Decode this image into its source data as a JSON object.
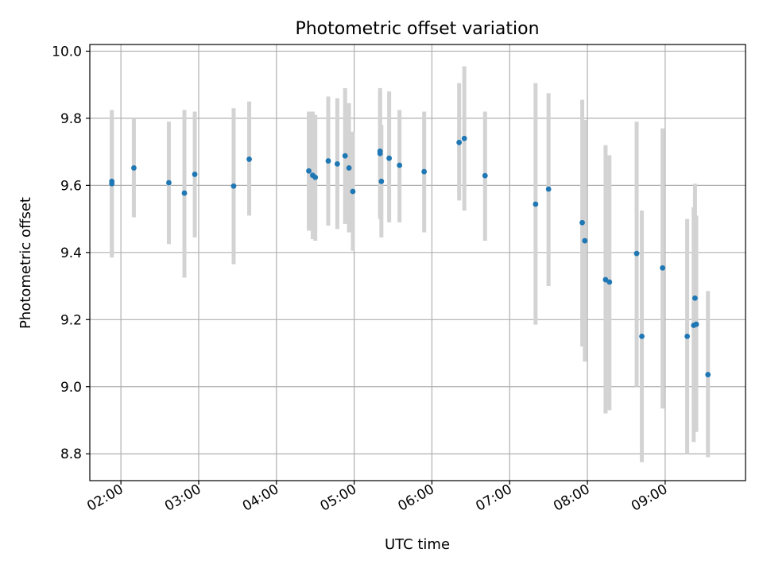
{
  "chart_data": {
    "type": "scatter",
    "title": "Photometric offset variation",
    "xlabel": "UTC time",
    "ylabel": "Photometric offset",
    "x_type": "time",
    "xlim": [
      "01:36",
      "10:02"
    ],
    "ylim": [
      8.72,
      10.02
    ],
    "xticks": [
      "02:00",
      "03:00",
      "04:00",
      "05:00",
      "06:00",
      "07:00",
      "08:00",
      "09:00"
    ],
    "yticks": [
      8.8,
      9.0,
      9.2,
      9.4,
      9.6,
      9.8,
      10.0
    ],
    "ytick_labels": [
      "8.8",
      "9.0",
      "9.2",
      "9.4",
      "9.6",
      "9.8",
      "10.0"
    ],
    "grid": true,
    "legend": "none",
    "point_color": "#1f77b4",
    "errorbar_color": "#d3d3d3",
    "series": [
      {
        "points": [
          {
            "x": "01:53",
            "y": 9.605,
            "ylow": 9.385,
            "yhigh": 9.825
          },
          {
            "x": "01:53",
            "y": 9.612,
            "ylow": 9.4,
            "yhigh": 9.8
          },
          {
            "x": "02:10",
            "y": 9.652,
            "ylow": 9.505,
            "yhigh": 9.8
          },
          {
            "x": "02:37",
            "y": 9.608,
            "ylow": 9.425,
            "yhigh": 9.79
          },
          {
            "x": "02:49",
            "y": 9.577,
            "ylow": 9.325,
            "yhigh": 9.825
          },
          {
            "x": "02:57",
            "y": 9.633,
            "ylow": 9.445,
            "yhigh": 9.82
          },
          {
            "x": "03:27",
            "y": 9.598,
            "ylow": 9.365,
            "yhigh": 9.83
          },
          {
            "x": "03:39",
            "y": 9.678,
            "ylow": 9.51,
            "yhigh": 9.85
          },
          {
            "x": "04:25",
            "y": 9.643,
            "ylow": 9.465,
            "yhigh": 9.82
          },
          {
            "x": "04:28",
            "y": 9.63,
            "ylow": 9.44,
            "yhigh": 9.82
          },
          {
            "x": "04:30",
            "y": 9.624,
            "ylow": 9.435,
            "yhigh": 9.81
          },
          {
            "x": "04:40",
            "y": 9.673,
            "ylow": 9.48,
            "yhigh": 9.865
          },
          {
            "x": "04:47",
            "y": 9.664,
            "ylow": 9.47,
            "yhigh": 9.86
          },
          {
            "x": "04:53",
            "y": 9.688,
            "ylow": 9.485,
            "yhigh": 9.89
          },
          {
            "x": "04:56",
            "y": 9.652,
            "ylow": 9.46,
            "yhigh": 9.845
          },
          {
            "x": "04:59",
            "y": 9.582,
            "ylow": 9.405,
            "yhigh": 9.76
          },
          {
            "x": "05:20",
            "y": 9.702,
            "ylow": 9.51,
            "yhigh": 9.89
          },
          {
            "x": "05:20",
            "y": 9.695,
            "ylow": 9.5,
            "yhigh": 9.88
          },
          {
            "x": "05:21",
            "y": 9.612,
            "ylow": 9.445,
            "yhigh": 9.78
          },
          {
            "x": "05:27",
            "y": 9.681,
            "ylow": 9.49,
            "yhigh": 9.88
          },
          {
            "x": "05:35",
            "y": 9.66,
            "ylow": 9.49,
            "yhigh": 9.825
          },
          {
            "x": "05:54",
            "y": 9.641,
            "ylow": 9.46,
            "yhigh": 9.82
          },
          {
            "x": "06:21",
            "y": 9.728,
            "ylow": 9.555,
            "yhigh": 9.905
          },
          {
            "x": "06:25",
            "y": 9.74,
            "ylow": 9.525,
            "yhigh": 9.955
          },
          {
            "x": "06:41",
            "y": 9.629,
            "ylow": 9.435,
            "yhigh": 9.82
          },
          {
            "x": "07:20",
            "y": 9.544,
            "ylow": 9.185,
            "yhigh": 9.905
          },
          {
            "x": "07:30",
            "y": 9.589,
            "ylow": 9.3,
            "yhigh": 9.875
          },
          {
            "x": "07:56",
            "y": 9.489,
            "ylow": 9.12,
            "yhigh": 9.855
          },
          {
            "x": "07:58",
            "y": 9.435,
            "ylow": 9.075,
            "yhigh": 9.795
          },
          {
            "x": "08:14",
            "y": 9.319,
            "ylow": 8.92,
            "yhigh": 9.72
          },
          {
            "x": "08:17",
            "y": 9.312,
            "ylow": 8.93,
            "yhigh": 9.69
          },
          {
            "x": "08:38",
            "y": 9.397,
            "ylow": 9.0,
            "yhigh": 9.79
          },
          {
            "x": "08:42",
            "y": 9.15,
            "ylow": 8.775,
            "yhigh": 9.525
          },
          {
            "x": "08:58",
            "y": 9.354,
            "ylow": 8.935,
            "yhigh": 9.77
          },
          {
            "x": "09:17",
            "y": 9.15,
            "ylow": 8.8,
            "yhigh": 9.5
          },
          {
            "x": "09:22",
            "y": 9.183,
            "ylow": 8.835,
            "yhigh": 9.535
          },
          {
            "x": "09:23",
            "y": 9.264,
            "ylow": 8.92,
            "yhigh": 9.605
          },
          {
            "x": "09:24",
            "y": 9.186,
            "ylow": 8.865,
            "yhigh": 9.51
          },
          {
            "x": "09:33",
            "y": 9.036,
            "ylow": 8.79,
            "yhigh": 9.285
          }
        ]
      }
    ]
  }
}
